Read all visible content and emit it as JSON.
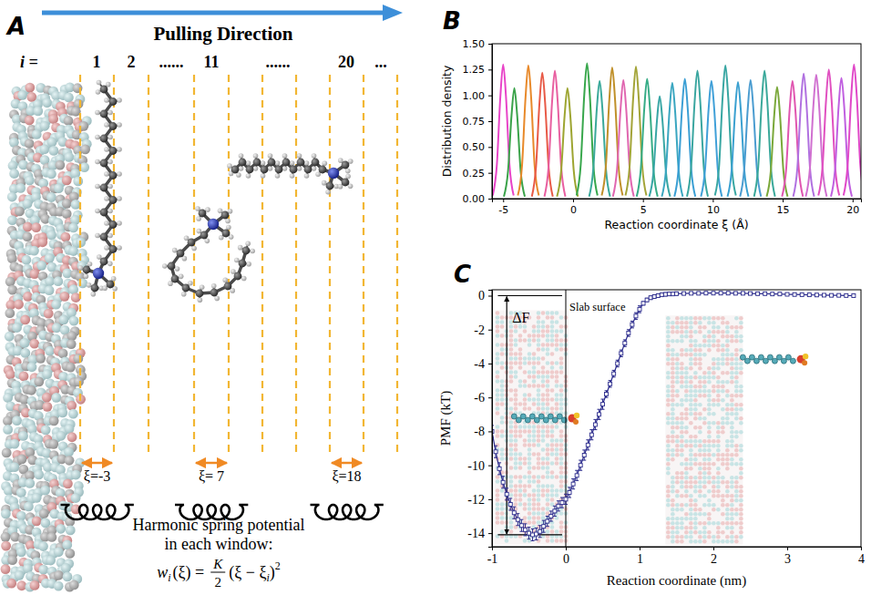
{
  "panel_a": {
    "panel_label": "A",
    "arrow_label": "Pulling Direction",
    "index_label": "i =",
    "index_items": [
      "1",
      "2",
      "......",
      "11",
      "......",
      "20",
      "..."
    ],
    "positions": [
      "ξ=-3",
      "ξ= 7",
      "ξ=18"
    ],
    "spring_caption": [
      "Harmonic spring potential",
      "in each window:"
    ],
    "formula": {
      "w": "w",
      "w_sub": "i",
      "arg": "(ξ) =",
      "numerator": "K",
      "denominator": "2",
      "paren": "(ξ − ξ",
      "paren_sub": "i",
      "close": ")",
      "power": "2"
    }
  },
  "chart_data": [
    {
      "type": "line",
      "panel_label": "B",
      "x_label": "Reaction coordinate ξ (Å)",
      "y_label": "Distribution density",
      "xlim": [
        -5.8,
        20.6
      ],
      "ylim": [
        0,
        1.5
      ],
      "xticks": [
        -5,
        0,
        5,
        10,
        15,
        20
      ],
      "yticks": [
        {
          "value": 0,
          "label": "0.00"
        },
        0.25,
        {
          "value": 0.5,
          "label": "0.50"
        },
        0.75,
        {
          "value": 1,
          "label": "1.00"
        },
        1.25,
        {
          "value": 1.5,
          "label": "1.50"
        }
      ],
      "grid": false,
      "series": [
        {
          "color": "#e844c8",
          "x": [
            -5.75,
            -5.45,
            -5.2,
            -5,
            -4.8,
            -4.55,
            -4.25
          ],
          "values": [
            0.03,
            0.33,
            0.99,
            1.3,
            0.99,
            0.33,
            0.03
          ]
        },
        {
          "color": "#3ba34a",
          "x": [
            -4.95,
            -4.65,
            -4.4,
            -4.2,
            -4,
            -3.75,
            -3.45
          ],
          "values": [
            0.02,
            0.27,
            0.81,
            1.07,
            0.81,
            0.27,
            0.02
          ]
        },
        {
          "color": "#e8892a",
          "x": [
            -3.95,
            -3.65,
            -3.4,
            -3.2,
            -3,
            -2.75,
            -2.45
          ],
          "values": [
            0.03,
            0.32,
            0.98,
            1.29,
            0.98,
            0.32,
            0.03
          ]
        },
        {
          "color": "#e85a47",
          "x": [
            -2.95,
            -2.65,
            -2.4,
            -2.2,
            -2,
            -1.75,
            -1.45
          ],
          "values": [
            0.02,
            0.31,
            0.93,
            1.22,
            0.93,
            0.31,
            0.02
          ]
        },
        {
          "color": "#e85fa0",
          "x": [
            -2.05,
            -1.75,
            -1.5,
            -1.3,
            -1.1,
            -0.85,
            -0.55
          ],
          "values": [
            0.02,
            0.31,
            0.94,
            1.24,
            0.94,
            0.31,
            0.02
          ]
        },
        {
          "color": "#9da531",
          "x": [
            -1.15,
            -0.85,
            -0.6,
            -0.4,
            -0.2,
            0.05,
            0.35
          ],
          "values": [
            0.02,
            0.27,
            0.81,
            1.07,
            0.81,
            0.27,
            0.02
          ]
        },
        {
          "color": "#38a74c",
          "x": [
            0.25,
            0.55,
            0.8,
            1,
            1.2,
            1.45,
            1.75
          ],
          "values": [
            0.03,
            0.33,
            1,
            1.31,
            1,
            0.33,
            0.03
          ]
        },
        {
          "color": "#3aa99a",
          "x": [
            1.15,
            1.45,
            1.7,
            1.9,
            2.1,
            2.35,
            2.65
          ],
          "values": [
            0.02,
            0.29,
            0.87,
            1.14,
            0.87,
            0.29,
            0.02
          ]
        },
        {
          "color": "#c0902a",
          "x": [
            2.05,
            2.35,
            2.6,
            2.8,
            3,
            3.25,
            3.55
          ],
          "values": [
            0.03,
            0.32,
            0.97,
            1.27,
            0.97,
            0.32,
            0.03
          ]
        },
        {
          "color": "#e066b0",
          "x": [
            2.85,
            3.15,
            3.4,
            3.6,
            3.8,
            4.05,
            4.35
          ],
          "values": [
            0.02,
            0.29,
            0.87,
            1.15,
            0.87,
            0.29,
            0.02
          ]
        },
        {
          "color": "#a3a438",
          "x": [
            3.75,
            4.05,
            4.3,
            4.5,
            4.7,
            4.95,
            5.25
          ],
          "values": [
            0.03,
            0.32,
            0.97,
            1.28,
            0.97,
            0.32,
            0.03
          ]
        },
        {
          "color": "#36ac86",
          "x": [
            4.55,
            4.85,
            5.1,
            5.3,
            5.5,
            5.75,
            6.05
          ],
          "values": [
            0.02,
            0.29,
            0.88,
            1.16,
            0.88,
            0.29,
            0.02
          ]
        },
        {
          "color": "#38a6a5",
          "x": [
            5.45,
            5.75,
            6,
            6.2,
            6.4,
            6.65,
            6.95
          ],
          "values": [
            0.02,
            0.25,
            0.75,
            0.99,
            0.75,
            0.25,
            0.02
          ]
        },
        {
          "color": "#3aa6c0",
          "x": [
            6.35,
            6.65,
            6.9,
            7.1,
            7.3,
            7.55,
            7.85
          ],
          "values": [
            0.02,
            0.28,
            0.85,
            1.12,
            0.85,
            0.28,
            0.02
          ]
        },
        {
          "color": "#3b9fd4",
          "x": [
            7.25,
            7.55,
            7.8,
            8,
            8.2,
            8.45,
            8.75
          ],
          "values": [
            0.02,
            0.29,
            0.88,
            1.16,
            0.88,
            0.29,
            0.02
          ]
        },
        {
          "color": "#3aa6a0",
          "x": [
            8.15,
            8.45,
            8.7,
            8.9,
            9.1,
            9.35,
            9.65
          ],
          "values": [
            0.02,
            0.31,
            0.94,
            1.24,
            0.94,
            0.31,
            0.02
          ]
        },
        {
          "color": "#40a0d8",
          "x": [
            9.15,
            9.45,
            9.7,
            9.9,
            10.1,
            10.35,
            10.65
          ],
          "values": [
            0.02,
            0.29,
            0.87,
            1.14,
            0.87,
            0.29,
            0.02
          ]
        },
        {
          "color": "#38a6a2",
          "x": [
            10.15,
            10.45,
            10.7,
            10.9,
            11.1,
            11.35,
            11.65
          ],
          "values": [
            0.03,
            0.32,
            0.98,
            1.29,
            0.98,
            0.32,
            0.03
          ]
        },
        {
          "color": "#3aa0d0",
          "x": [
            11.05,
            11.35,
            11.6,
            11.8,
            12,
            12.25,
            12.55
          ],
          "values": [
            0.02,
            0.28,
            0.86,
            1.13,
            0.86,
            0.28,
            0.02
          ]
        },
        {
          "color": "#4a9cd0",
          "x": [
            11.95,
            12.25,
            12.5,
            12.7,
            12.9,
            13.15,
            13.45
          ],
          "values": [
            0.02,
            0.29,
            0.87,
            1.15,
            0.87,
            0.29,
            0.02
          ]
        },
        {
          "color": "#3aa89a",
          "x": [
            12.95,
            13.25,
            13.5,
            13.7,
            13.9,
            14.15,
            14.45
          ],
          "values": [
            0.02,
            0.31,
            0.94,
            1.24,
            0.94,
            0.31,
            0.02
          ]
        },
        {
          "color": "#7aa83a",
          "x": [
            13.85,
            14.15,
            14.4,
            14.6,
            14.8,
            15.05,
            15.35
          ],
          "values": [
            0.02,
            0.27,
            0.82,
            1.08,
            0.82,
            0.27,
            0.02
          ]
        },
        {
          "color": "#e055b0",
          "x": [
            14.95,
            15.25,
            15.5,
            15.7,
            15.9,
            16.15,
            16.45
          ],
          "values": [
            0.02,
            0.29,
            0.87,
            1.14,
            0.87,
            0.29,
            0.02
          ]
        },
        {
          "color": "#b070e0",
          "x": [
            15.75,
            16.05,
            16.3,
            16.5,
            16.7,
            16.95,
            17.25
          ],
          "values": [
            0.02,
            0.3,
            0.92,
            1.21,
            0.92,
            0.3,
            0.02
          ]
        },
        {
          "color": "#d070d0",
          "x": [
            16.65,
            16.95,
            17.2,
            17.4,
            17.6,
            17.85,
            18.15
          ],
          "values": [
            0.02,
            0.3,
            0.91,
            1.2,
            0.91,
            0.3,
            0.02
          ]
        },
        {
          "color": "#e050c0",
          "x": [
            17.55,
            17.85,
            18.1,
            18.3,
            18.5,
            18.75,
            19.05
          ],
          "values": [
            0.03,
            0.31,
            0.95,
            1.25,
            0.95,
            0.31,
            0.03
          ]
        },
        {
          "color": "#c060e0",
          "x": [
            18.45,
            18.75,
            19,
            19.2,
            19.4,
            19.65,
            19.95
          ],
          "values": [
            0.02,
            0.29,
            0.89,
            1.17,
            0.89,
            0.29,
            0.02
          ]
        },
        {
          "color": "#e048c8",
          "x": [
            19.35,
            19.65,
            19.9,
            20.1,
            20.3,
            20.55,
            20.85
          ],
          "values": [
            0.03,
            0.33,
            0.99,
            1.3,
            0.99,
            0.33,
            0.03
          ]
        }
      ]
    },
    {
      "type": "line",
      "panel_label": "C",
      "x_label": "Reaction coordinate (nm)",
      "y_label": "PMF (kT)",
      "xlim": [
        -1,
        4
      ],
      "ylim": [
        -14.8,
        0.35
      ],
      "xticks": [
        -1,
        0,
        1,
        2,
        3,
        4
      ],
      "yticks": [
        -14,
        -12,
        -10,
        -8,
        -6,
        -4,
        -2,
        0
      ],
      "grid": false,
      "vline": {
        "x": 0,
        "label": "Slab surface"
      },
      "delta_f": {
        "label": "ΔF",
        "x": -0.8,
        "y_top": 0,
        "y_bottom": -14.1,
        "x_span": [
          -0.92,
          -0.05
        ]
      },
      "series": [
        {
          "color": "#2b2b8c",
          "marker": "square",
          "x": [
            -1,
            -0.95,
            -0.9,
            -0.85,
            -0.8,
            -0.75,
            -0.7,
            -0.65,
            -0.6,
            -0.55,
            -0.5,
            -0.45,
            -0.4,
            -0.35,
            -0.3,
            -0.25,
            -0.2,
            -0.15,
            -0.1,
            -0.05,
            0,
            0.05,
            0.1,
            0.15,
            0.2,
            0.25,
            0.3,
            0.35,
            0.4,
            0.45,
            0.5,
            0.55,
            0.6,
            0.65,
            0.7,
            0.75,
            0.8,
            0.85,
            0.9,
            0.95,
            1,
            1.05,
            1.1,
            1.15,
            1.2,
            1.25,
            1.3,
            1.35,
            1.4,
            1.45,
            1.5,
            1.6,
            1.7,
            1.8,
            1.9,
            2,
            2.1,
            2.2,
            2.3,
            2.4,
            2.5,
            2.6,
            2.7,
            2.8,
            2.9,
            3,
            3.1,
            3.2,
            3.3,
            3.4,
            3.5,
            3.6,
            3.7,
            3.8,
            3.9
          ],
          "values": [
            -8,
            -9.2,
            -10.2,
            -11,
            -11.7,
            -12.3,
            -12.8,
            -13.2,
            -13.55,
            -13.8,
            -14,
            -14.1,
            -14.05,
            -13.9,
            -13.6,
            -13.3,
            -13,
            -12.7,
            -12.4,
            -12.2,
            -12,
            -11.6,
            -11.1,
            -10.6,
            -10,
            -9.4,
            -8.8,
            -8.2,
            -7.6,
            -7,
            -6.4,
            -5.8,
            -5.2,
            -4.6,
            -4,
            -3.4,
            -2.8,
            -2.2,
            -1.7,
            -1.2,
            -0.8,
            -0.45,
            -0.25,
            -0.12,
            -0.05,
            0,
            0.05,
            0.08,
            0.1,
            0.1,
            0.12,
            0.13,
            0.14,
            0.14,
            0.15,
            0.15,
            0.15,
            0.15,
            0.14,
            0.14,
            0.13,
            0.12,
            0.12,
            0.1,
            0.1,
            0.08,
            0.07,
            0.06,
            0.05,
            0.04,
            0.03,
            0.02,
            0.02,
            0.01,
            0
          ],
          "errors": [
            0.35,
            0.35,
            0.35,
            0.35,
            0.35,
            0.35,
            0.35,
            0.35,
            0.35,
            0.35,
            0.35,
            0.35,
            0.35,
            0.35,
            0.35,
            0.3,
            0.3,
            0.3,
            0.3,
            0.3,
            0.3,
            0.3,
            0.3,
            0.3,
            0.3,
            0.3,
            0.3,
            0.3,
            0.3,
            0.3,
            0.3,
            0.2,
            0.2,
            0.2,
            0.2,
            0.2,
            0.2,
            0.2,
            0.2,
            0.2,
            0.2,
            0.1,
            0.1,
            0.1,
            0.1,
            0.1,
            0.1,
            0.1,
            0.1,
            0.1,
            0.1,
            0.08,
            0.08,
            0.08,
            0.08,
            0.08,
            0.08,
            0.08,
            0.08,
            0.08,
            0.08,
            0.08,
            0.08,
            0.08,
            0.08,
            0.08,
            0.08,
            0.08,
            0.08,
            0.08,
            0.08,
            0.08,
            0.08,
            0.08,
            0.08
          ]
        }
      ]
    }
  ]
}
